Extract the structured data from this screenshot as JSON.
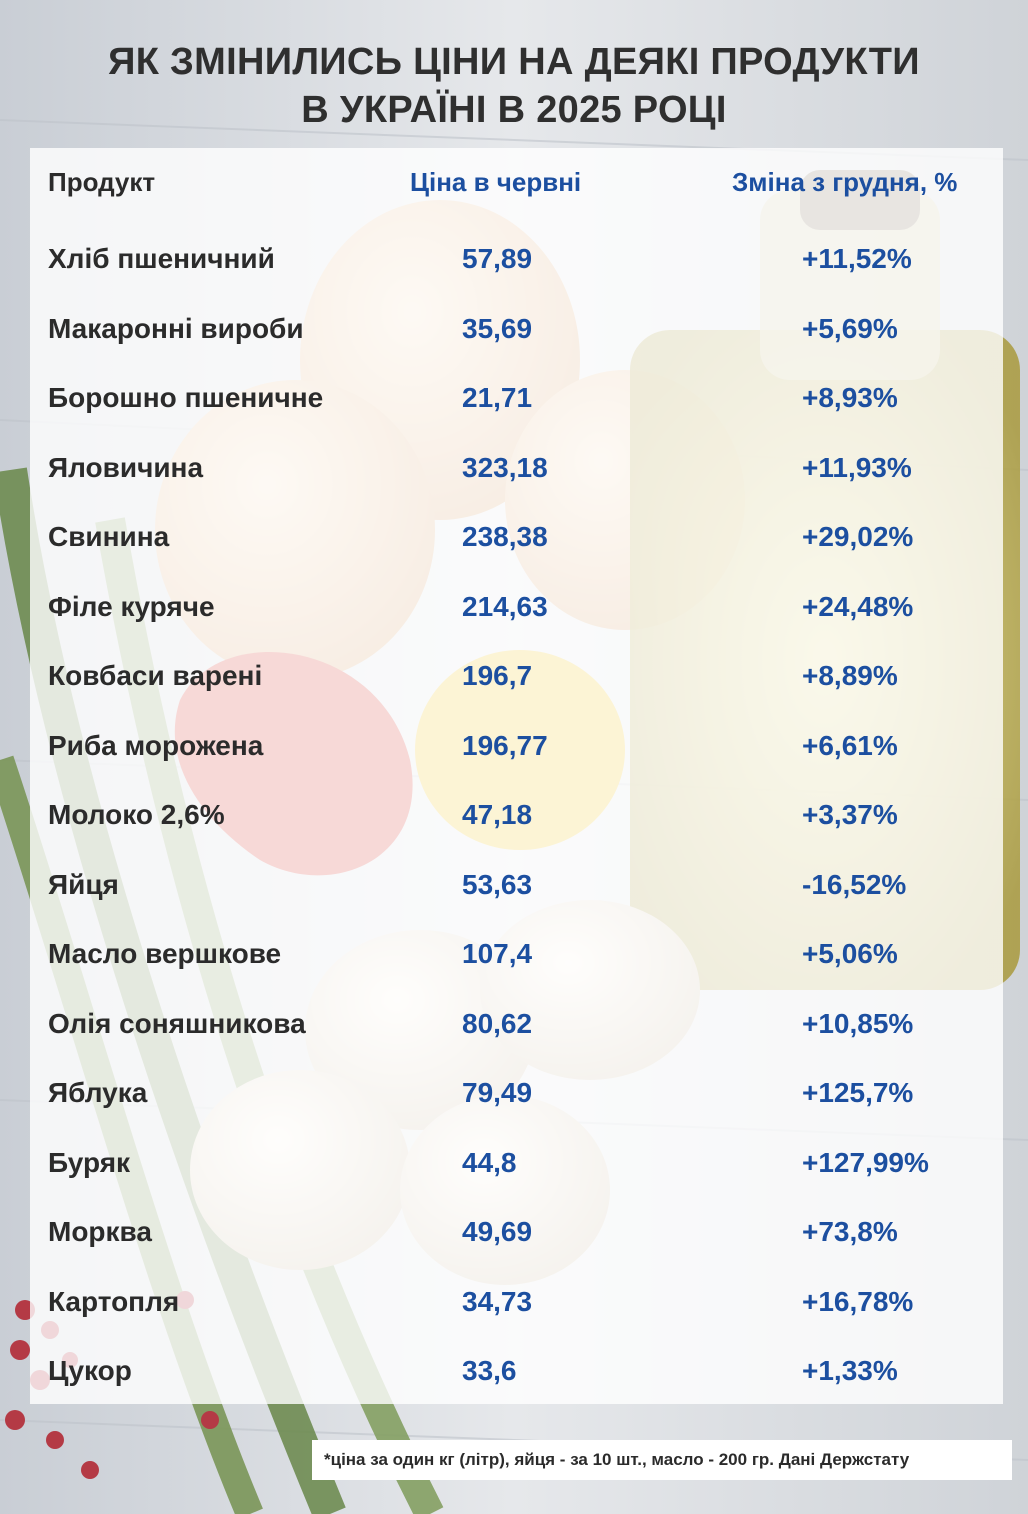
{
  "title_line1": "ЯК ЗМІНИЛИСЬ ЦІНИ НА ДЕЯКІ ПРОДУКТИ",
  "title_line2": "В УКРАЇНІ В 2025 РОЦІ",
  "chart_data": {
    "type": "table",
    "columns": [
      "Продукт",
      "Ціна в червні",
      "Зміна з грудня, %"
    ],
    "rows": [
      [
        "Хліб пшеничний",
        "57,89",
        "+11,52%"
      ],
      [
        "Макаронні вироби",
        "35,69",
        "+5,69%"
      ],
      [
        "Борошно пшеничне",
        "21,71",
        "+8,93%"
      ],
      [
        "Яловичина",
        "323,18",
        "+11,93%"
      ],
      [
        "Свинина",
        "238,38",
        "+29,02%"
      ],
      [
        "Філе куряче",
        "214,63",
        "+24,48%"
      ],
      [
        "Ковбаси варені",
        "196,7",
        "+8,89%"
      ],
      [
        "Риба морожена",
        "196,77",
        "+6,61%"
      ],
      [
        "Молоко 2,6%",
        "47,18",
        "+3,37%"
      ],
      [
        "Яйця",
        "53,63",
        "-16,52%"
      ],
      [
        "Масло вершкове",
        "107,4",
        "+5,06%"
      ],
      [
        "Олія соняшникова",
        "80,62",
        "+10,85%"
      ],
      [
        "Яблука",
        "79,49",
        "+125,7%"
      ],
      [
        "Буряк",
        "44,8",
        "+127,99%"
      ],
      [
        "Морква",
        "49,69",
        "+73,8%"
      ],
      [
        "Картопля",
        "34,73",
        "+16,78%"
      ],
      [
        "Цукор",
        "33,6",
        "+1,33%"
      ]
    ]
  },
  "footnote": "*ціна за один кг (літр), яйця - за 10 шт., масло - 200 гр. Дані Держстату",
  "colors": {
    "accent": "#1c4fa0",
    "text": "#2b2b2b"
  }
}
